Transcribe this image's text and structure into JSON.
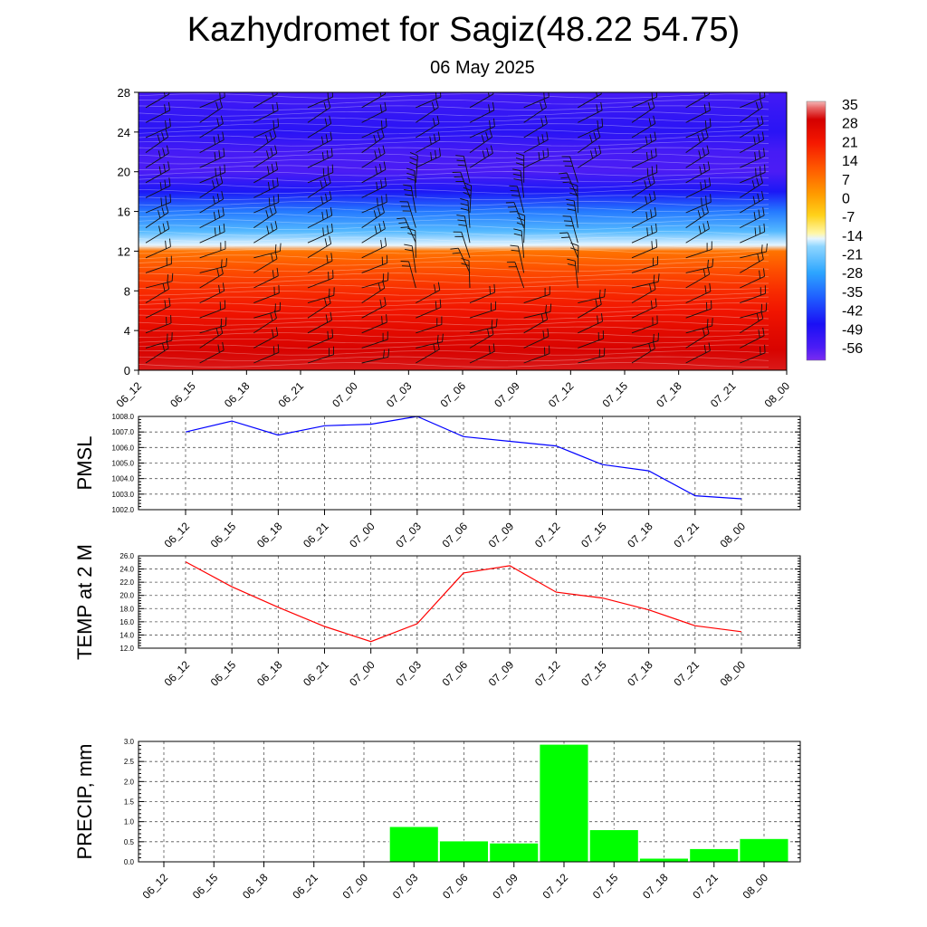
{
  "title": "Kazhydromet for Sagiz(48.22 54.75)",
  "subtitle": "06 May 2025",
  "colors": {
    "pmsl_line": "#0000ff",
    "temp_line": "#ff0000",
    "precip_bar": "#00ff00",
    "grid": "#555555"
  },
  "chart_data": [
    {
      "type": "heatmap",
      "title": "",
      "x_ticks": [
        "06_12",
        "06_15",
        "06_18",
        "06_21",
        "07_00",
        "07_03",
        "07_06",
        "07_09",
        "07_12",
        "07_15",
        "07_18",
        "07_21",
        "08_00"
      ],
      "y_ticks": [
        "0",
        "4",
        "8",
        "12",
        "16",
        "20",
        "24",
        "28"
      ],
      "ylim": [
        0,
        28
      ],
      "colorbar_labels": [
        "35",
        "28",
        "21",
        "14",
        "7",
        "0",
        "-7",
        "-14",
        "-21",
        "-28",
        "-35",
        "-42",
        "-49",
        "-56"
      ],
      "colorbar_range": [
        -60,
        38
      ],
      "temperature_profile": {
        "levels": [
          0,
          2,
          4,
          6,
          8,
          10,
          12,
          12.6,
          14,
          16,
          18,
          20,
          22,
          24,
          26,
          28
        ],
        "values": [
          33,
          31,
          28,
          24,
          20,
          15,
          9,
          -13,
          -22,
          -32,
          -45,
          -55,
          -54,
          -49,
          -51,
          -54
        ]
      },
      "overlay": "wind barbs"
    },
    {
      "type": "line",
      "ylabel": "PMSL",
      "categories": [
        "06_12",
        "06_15",
        "06_18",
        "06_21",
        "07_00",
        "07_03",
        "07_06",
        "07_09",
        "07_12",
        "07_15",
        "07_18",
        "07_21",
        "08_00"
      ],
      "values": [
        1007.0,
        1007.7,
        1006.8,
        1007.4,
        1007.5,
        1008.0,
        1006.7,
        1006.4,
        1006.1,
        1004.9,
        1004.5,
        1002.9,
        1002.7
      ],
      "ylim": [
        1002.0,
        1008.0
      ],
      "y_ticks": [
        "1002.0",
        "1003.0",
        "1004.0",
        "1005.0",
        "1006.0",
        "1007.0",
        "1008.0"
      ],
      "grid": true
    },
    {
      "type": "line",
      "ylabel": "TEMP at 2 M",
      "categories": [
        "06_12",
        "06_15",
        "06_18",
        "06_21",
        "07_00",
        "07_03",
        "07_06",
        "07_09",
        "07_12",
        "07_15",
        "07_18",
        "07_21",
        "08_00"
      ],
      "values": [
        25.1,
        21.3,
        18.2,
        15.3,
        13.0,
        15.7,
        23.4,
        24.5,
        20.5,
        19.6,
        17.8,
        15.4,
        14.5
      ],
      "ylim": [
        12.0,
        26.0
      ],
      "y_ticks": [
        "12.0",
        "14.0",
        "16.0",
        "18.0",
        "20.0",
        "22.0",
        "24.0",
        "26.0"
      ],
      "grid": true
    },
    {
      "type": "bar",
      "ylabel": "PRECIP, mm",
      "categories": [
        "06_12",
        "06_15",
        "06_18",
        "06_21",
        "07_00",
        "07_03",
        "07_06",
        "07_09",
        "07_12",
        "07_15",
        "07_18",
        "07_21",
        "08_00"
      ],
      "values": [
        0,
        0,
        0,
        0,
        0,
        0.88,
        0.52,
        0.47,
        2.93,
        0.8,
        0.09,
        0.33,
        0.58
      ],
      "ylim": [
        0,
        3.0
      ],
      "y_ticks": [
        "0.0",
        "0.5",
        "1.0",
        "1.5",
        "2.0",
        "2.5",
        "3.0"
      ],
      "grid": true
    }
  ]
}
